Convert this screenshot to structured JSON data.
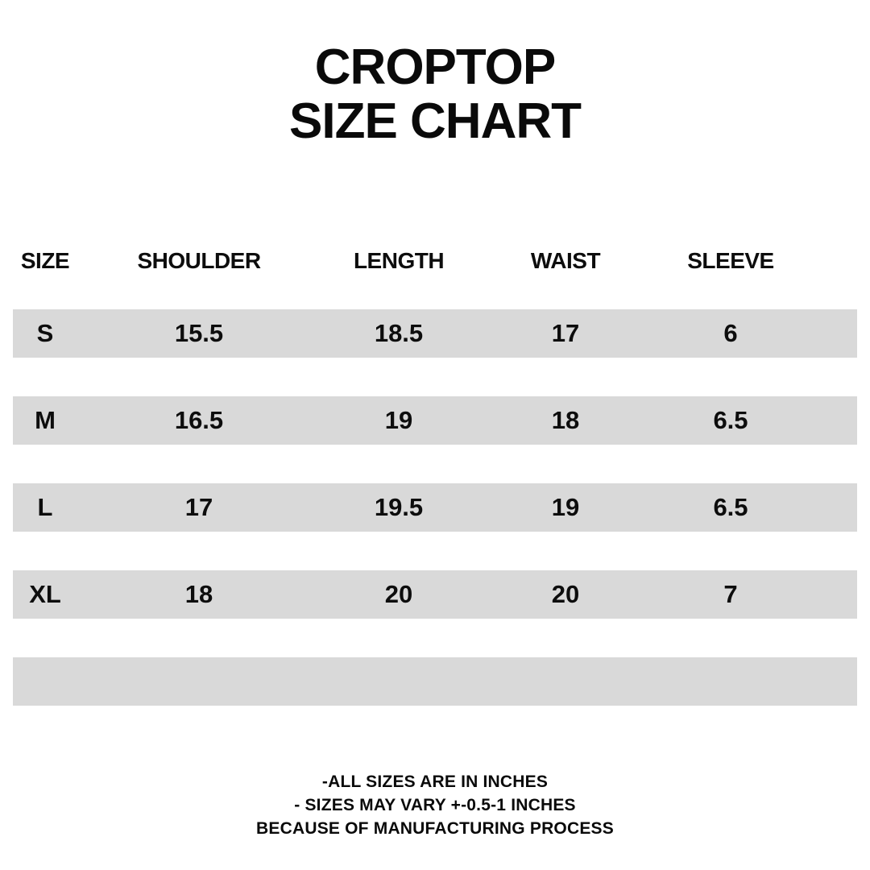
{
  "title": {
    "line1": "CROPTOP",
    "line2": "SIZE CHART"
  },
  "table": {
    "columns": {
      "size": "SIZE",
      "shoulder": "SHOULDER",
      "length": "LENGTH",
      "waist": "WAIST",
      "sleeve": "SLEEVE"
    },
    "rows": [
      {
        "size": "S",
        "shoulder": "15.5",
        "length": "18.5",
        "waist": "17",
        "sleeve": "6"
      },
      {
        "size": "M",
        "shoulder": "16.5",
        "length": "19",
        "waist": "18",
        "sleeve": "6.5"
      },
      {
        "size": "L",
        "shoulder": "17",
        "length": "19.5",
        "waist": "19",
        "sleeve": "6.5"
      },
      {
        "size": "XL",
        "shoulder": "18",
        "length": "20",
        "waist": "20",
        "sleeve": "7"
      }
    ],
    "empty_trailing_band": true
  },
  "footnotes": {
    "line1": "-ALL SIZES ARE IN INCHES",
    "line2": "- SIZES MAY VARY +-0.5-1 INCHES",
    "line3": "BECAUSE OF MANUFACTURING PROCESS"
  },
  "units": "INCHES",
  "colors": {
    "background": "#ffffff",
    "row_band": "#d9d9d9",
    "text": "#0a0a0a"
  }
}
